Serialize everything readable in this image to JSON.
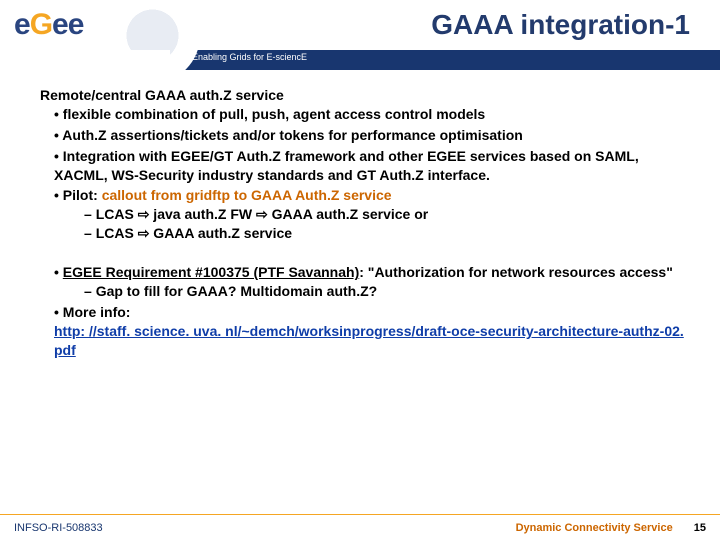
{
  "header": {
    "logo_letters": [
      "e",
      "G",
      "e",
      "e"
    ],
    "title": "GAAA integration-1",
    "tagline": "Enabling Grids for E-sciencE"
  },
  "body": {
    "intro": "Remote/central GAAA auth.Z service",
    "bullets1": [
      "flexible combination of pull, push, agent access control models",
      "Auth.Z assertions/tickets and/or tokens for performance optimisation",
      "Integration with EGEE/GT Auth.Z framework and other EGEE services based on SAML, XACML, WS-Security industry standards and GT Auth.Z interface."
    ],
    "pilot_label": "Pilot: ",
    "pilot_text": "callout from gridftp to GAAA Auth.Z service",
    "dash1": [
      "LCAS ⇨ java auth.Z FW ⇨ GAAA auth.Z service or",
      "LCAS ⇨ GAAA auth.Z service"
    ],
    "req_prefix": "EGEE Requirement #100375 (PTF Savannah)",
    "req_suffix": ": \"Authorization for network resources access\"",
    "dash2": "Gap to fill for GAAA? Multidomain auth.Z?",
    "more_label": "More info: ",
    "more_url": "http: //staff. science. uva. nl/~demch/worksinprogress/draft-oce-security-architecture-authz-02. pdf"
  },
  "footer": {
    "left": "INFSO-RI-508833",
    "right": "Dynamic Connectivity Service",
    "page": "15"
  }
}
